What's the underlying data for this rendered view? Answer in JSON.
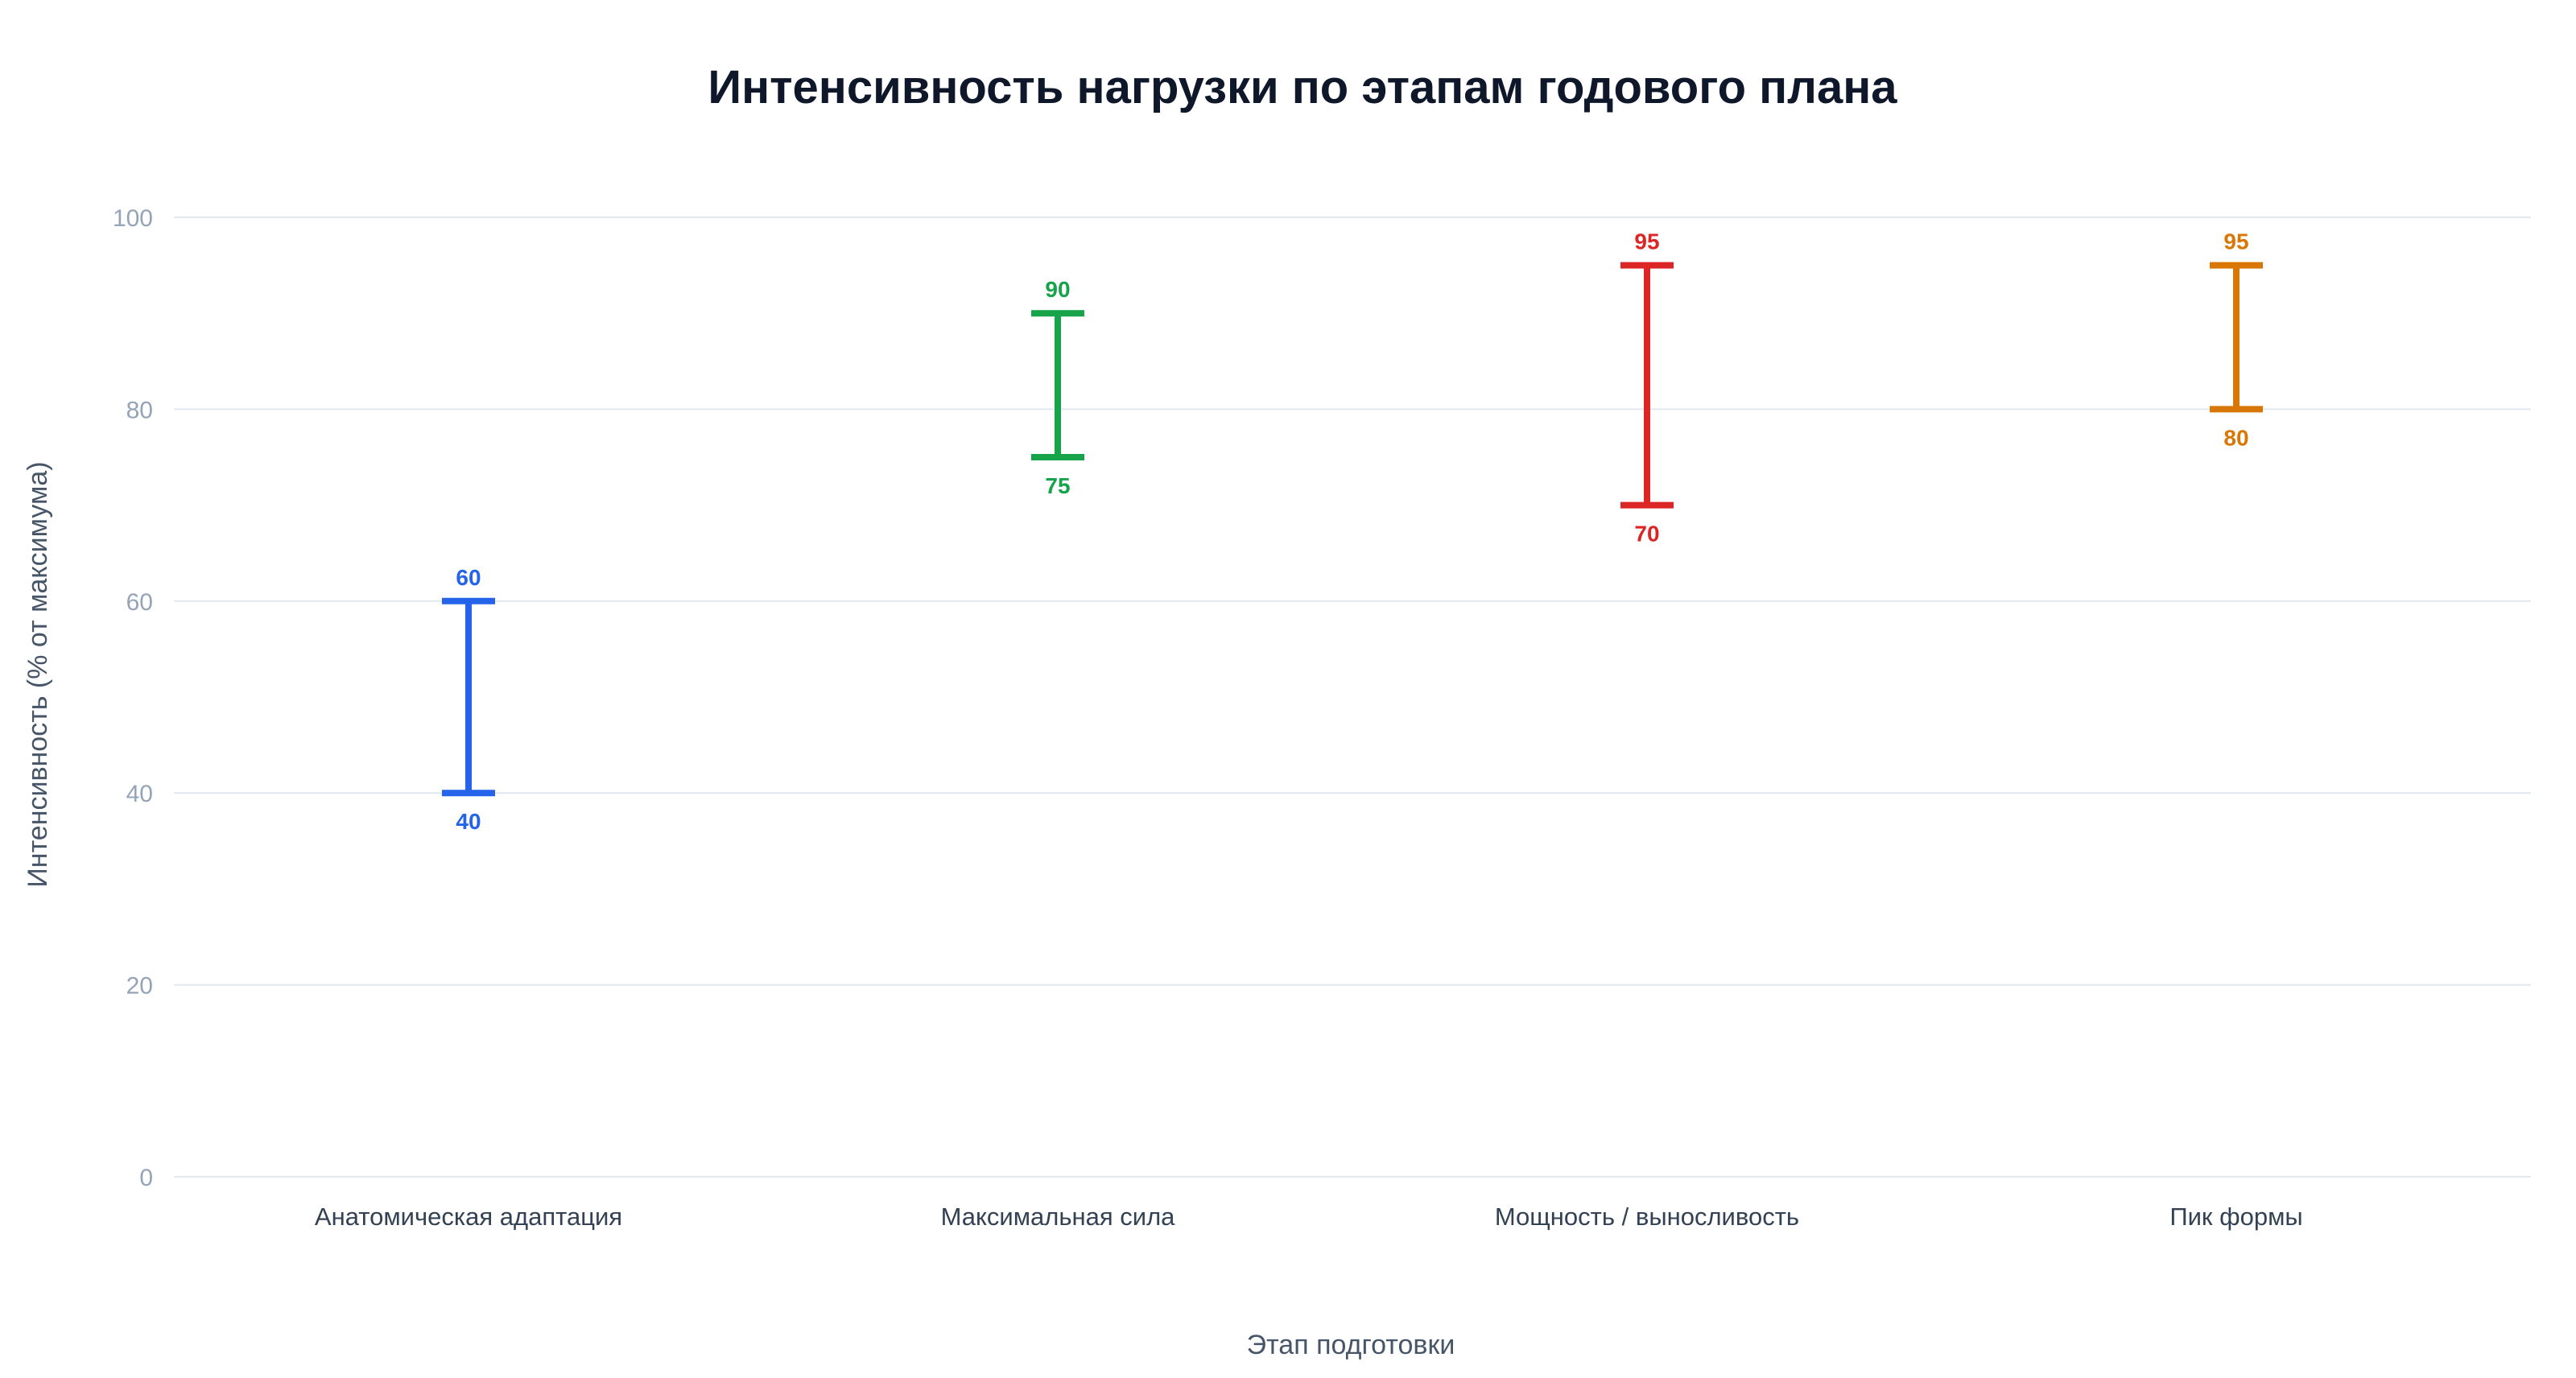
{
  "chart_data": {
    "type": "range",
    "title": "Интенсивность нагрузки по этапам годового плана",
    "xlabel": "Этап подготовки",
    "ylabel": "Интенсивность (% от максимума)",
    "ylim": [
      0,
      100
    ],
    "yticks": [
      0,
      20,
      40,
      60,
      80,
      100
    ],
    "grid": true,
    "legend": "none",
    "categories": [
      "Анатомическая адаптация",
      "Максимальная сила",
      "Мощность / выносливость",
      "Пик формы"
    ],
    "ranges": [
      {
        "low": 40,
        "high": 60,
        "color": "#2563eb"
      },
      {
        "low": 75,
        "high": 90,
        "color": "#16a34a"
      },
      {
        "low": 70,
        "high": 95,
        "color": "#dc2626"
      },
      {
        "low": 80,
        "high": 95,
        "color": "#d97706"
      }
    ]
  }
}
